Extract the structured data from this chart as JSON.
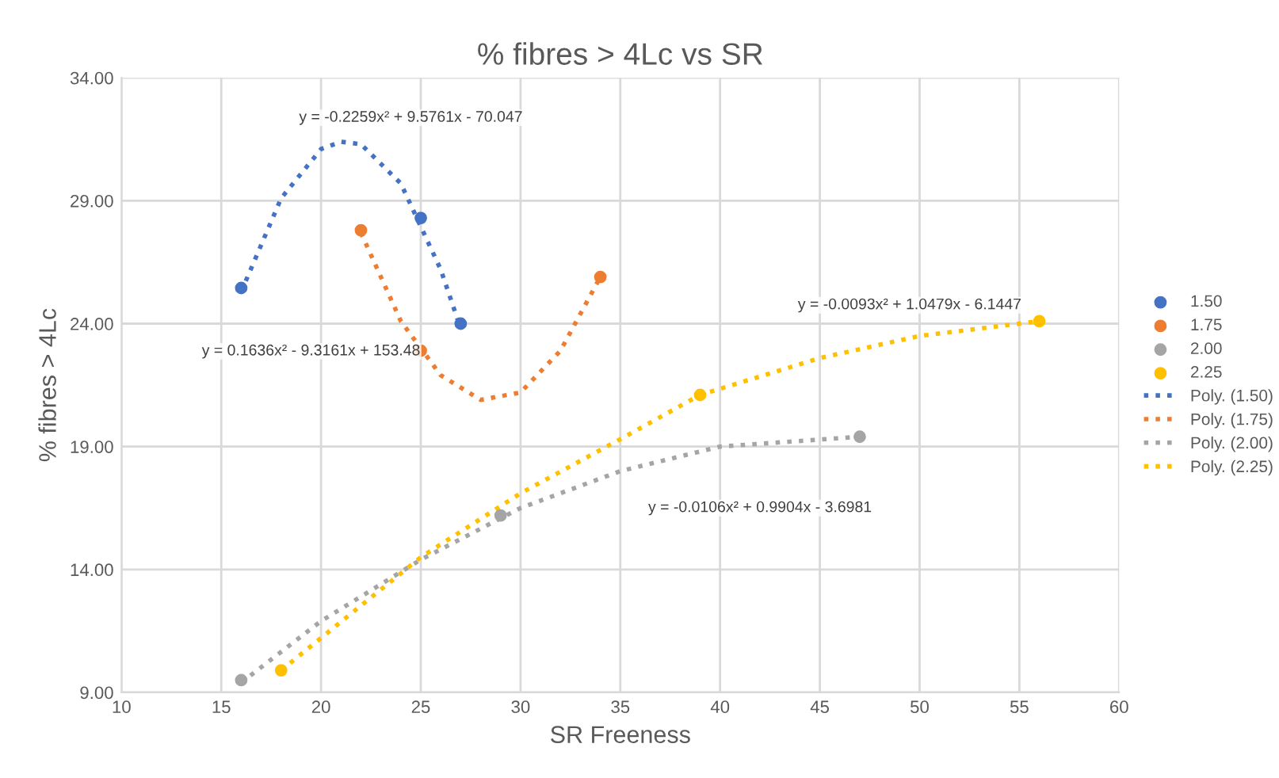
{
  "chart_data": {
    "type": "scatter",
    "title": "% fibres > 4Lc vs SR",
    "xlabel": "SR Freeness",
    "ylabel": "% fibres > 4Lc",
    "xlim": [
      10,
      60
    ],
    "xticks": [
      10,
      15,
      20,
      25,
      30,
      35,
      40,
      45,
      50,
      55,
      60
    ],
    "ylim": [
      9,
      34
    ],
    "yticks": [
      {
        "value": 9,
        "label": "9.00"
      },
      {
        "value": 14,
        "label": "14.00"
      },
      {
        "value": 19,
        "label": "19.00"
      },
      {
        "value": 24,
        "label": "24.00"
      },
      {
        "value": 29,
        "label": "29.00"
      },
      {
        "value": 34,
        "label": "34.00"
      }
    ],
    "grid": true,
    "legend": "right",
    "marker": "circle",
    "series": [
      {
        "name": "1.50",
        "color": "#4472c4",
        "x": [
          16,
          25,
          27
        ],
        "values": [
          25.45,
          28.3,
          24.0
        ]
      },
      {
        "name": "1.75",
        "color": "#ed7d31",
        "x": [
          22,
          25,
          34
        ],
        "values": [
          27.8,
          22.9,
          25.9
        ]
      },
      {
        "name": "2.00",
        "color": "#a5a5a5",
        "x": [
          16,
          29,
          47
        ],
        "values": [
          9.5,
          16.2,
          19.4
        ]
      },
      {
        "name": "2.25",
        "color": "#ffc000",
        "x": [
          18,
          39,
          56
        ],
        "values": [
          9.9,
          21.1,
          24.1
        ]
      },
      {
        "name": "Poly. (1.50)",
        "type": "line",
        "line_style": "dotted",
        "marker": "none",
        "color": "#4472c4",
        "x": [
          16,
          18,
          20,
          21,
          22,
          24,
          26,
          27
        ],
        "values": [
          25.3,
          29.1,
          31.1,
          31.4,
          31.3,
          29.7,
          26.2,
          23.8
        ]
      },
      {
        "name": "Poly. (1.75)",
        "type": "line",
        "line_style": "dotted",
        "marker": "none",
        "color": "#ed7d31",
        "x": [
          22,
          24,
          26,
          28,
          30,
          32,
          34
        ],
        "values": [
          27.7,
          24.1,
          21.9,
          20.9,
          21.2,
          22.9,
          25.9
        ]
      },
      {
        "name": "Poly. (2.00)",
        "type": "line",
        "line_style": "dotted",
        "marker": "none",
        "color": "#a5a5a5",
        "x": [
          16,
          20,
          25,
          30,
          35,
          40,
          47
        ],
        "values": [
          9.4,
          11.9,
          14.4,
          16.5,
          18.0,
          19.0,
          19.4
        ]
      },
      {
        "name": "Poly. (2.25)",
        "type": "line",
        "line_style": "dotted",
        "marker": "none",
        "color": "#ffc000",
        "x": [
          18,
          25,
          30,
          35,
          39,
          45,
          50,
          56
        ],
        "values": [
          9.9,
          14.5,
          17.1,
          19.3,
          21.1,
          22.6,
          23.5,
          24.1
        ]
      }
    ],
    "annotations": [
      "y = -0.2259x² + 9.5761x - 70.047",
      "y = 0.1636x² - 9.3161x + 153.48",
      "y = -0.0106x² + 0.9904x - 3.6981",
      "y = -0.0093x² + 1.0479x - 6.1447"
    ]
  }
}
